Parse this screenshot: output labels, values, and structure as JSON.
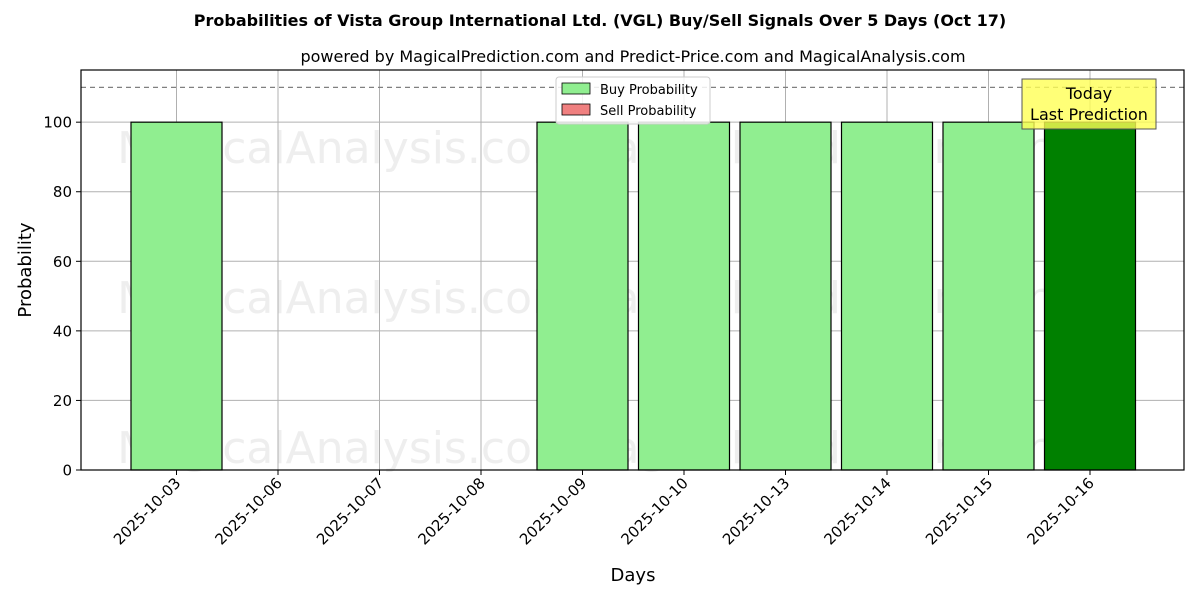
{
  "chart_data": {
    "type": "bar",
    "title": "Probabilities of Vista Group International Ltd. (VGL) Buy/Sell Signals Over 5 Days (Oct 17)",
    "subtitle": "powered by MagicalPrediction.com and Predict-Price.com and MagicalAnalysis.com",
    "xlabel": "Days",
    "ylabel": "Probability",
    "categories": [
      "2025-10-03",
      "2025-10-06",
      "2025-10-07",
      "2025-10-08",
      "2025-10-09",
      "2025-10-10",
      "2025-10-13",
      "2025-10-14",
      "2025-10-15",
      "2025-10-16"
    ],
    "series": [
      {
        "name": "Buy Probability",
        "color": "#90ee90",
        "values": [
          100,
          0,
          0,
          0,
          100,
          100,
          100,
          100,
          100,
          100
        ]
      },
      {
        "name": "Sell Probability",
        "color": "#f08080",
        "values": [
          0,
          0,
          0,
          0,
          0,
          0,
          0,
          0,
          0,
          0
        ]
      }
    ],
    "highlight": {
      "index": 9,
      "color": "#008000"
    },
    "ylim": [
      0,
      115
    ],
    "yticks": [
      0,
      20,
      40,
      60,
      80,
      100
    ],
    "reference_line": 110,
    "grid": true,
    "legend_position": "top-center",
    "annotation": {
      "line1": "Today",
      "line2": "Last Prediction",
      "color": "#ffff55"
    },
    "watermarks": [
      "MagicalAnalysis.com",
      "MagicalPrediction.com"
    ]
  }
}
